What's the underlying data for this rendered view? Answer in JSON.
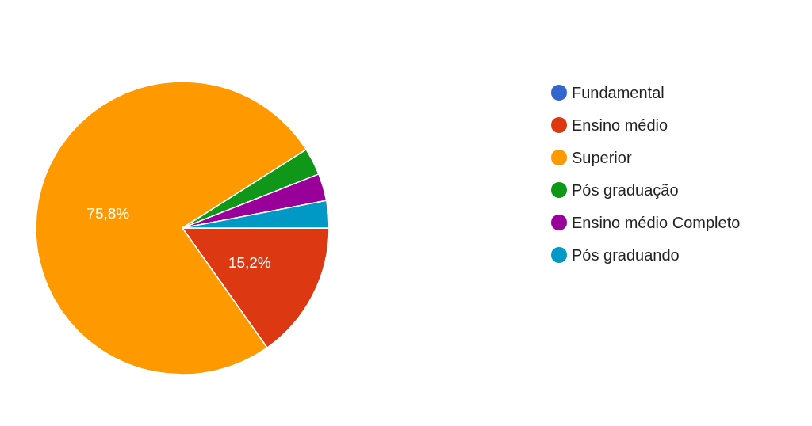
{
  "chart_data": {
    "type": "pie",
    "categories": [
      "Fundamental",
      "Ensino médio",
      "Superior",
      "Pós graduação",
      "Ensino médio Completo",
      "Pós graduando"
    ],
    "values": [
      0,
      15.2,
      75.8,
      3,
      3,
      3
    ],
    "colors": [
      "#3366cc",
      "#dc3912",
      "#ff9900",
      "#109618",
      "#990099",
      "#0099c6"
    ],
    "value_labels": [
      null,
      "15,2%",
      "75,8%",
      null,
      null,
      null
    ],
    "legend": "right"
  }
}
